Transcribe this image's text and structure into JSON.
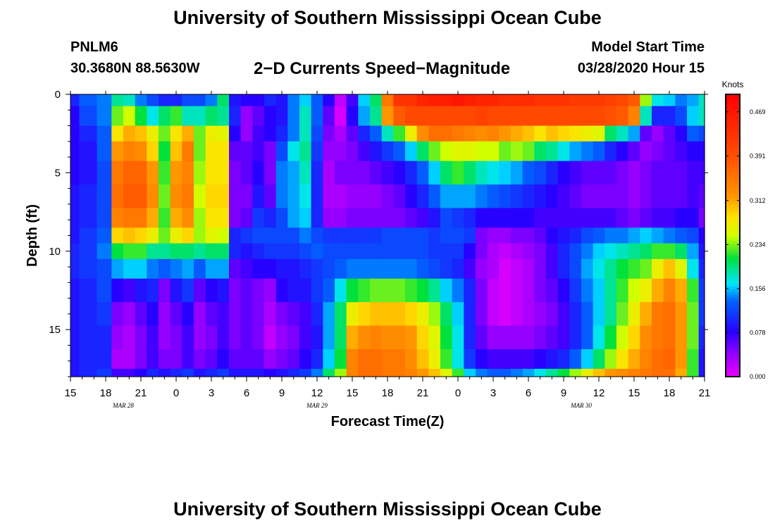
{
  "header": {
    "title": "University of Southern Mississippi Ocean Cube",
    "station": "PNLM6",
    "coordinates": "30.3680N 88.5630W",
    "subtitle": "2−D Currents Speed−Magnitude",
    "start_label": "Model Start Time",
    "start_value": "03/28/2020 Hour 15"
  },
  "footer": {
    "title": "University of Southern Mississippi Ocean Cube"
  },
  "chart_data": {
    "type": "heatmap",
    "title": "2−D Currents Speed−Magnitude",
    "xlabel": "Forecast Time(Z)",
    "ylabel": "Depth (ft)",
    "xlim": [
      0,
      54
    ],
    "ylim": [
      0,
      18
    ],
    "y_inverted": true,
    "x_tick_labels": [
      "15",
      "18",
      "21",
      "0",
      "3",
      "6",
      "9",
      "12",
      "15",
      "18",
      "21",
      "0",
      "3",
      "6",
      "9",
      "12",
      "15",
      "18",
      "21"
    ],
    "x_ticks": [
      0,
      3,
      6,
      9,
      12,
      15,
      18,
      21,
      24,
      27,
      30,
      33,
      36,
      39,
      42,
      45,
      48,
      51,
      54
    ],
    "date_labels": [
      {
        "label": "MAR  28",
        "x": 4.5
      },
      {
        "label": "MAR  29",
        "x": 21
      },
      {
        "label": "MAR  30",
        "x": 43.5
      }
    ],
    "y_ticks": [
      0,
      5,
      10,
      15
    ],
    "colorbar": {
      "label": "Knots",
      "range": [
        0,
        0.5
      ],
      "tick_values": [
        0.0,
        0.078,
        0.156,
        0.234,
        0.312,
        0.391,
        0.469
      ],
      "tick_labels": [
        "0.000",
        "0.078",
        "0.156",
        "0.234",
        "0.312",
        "0.391",
        "0.469"
      ]
    },
    "speed_field_knots": {
      "hours": [
        0,
        1.5,
        3,
        4,
        5,
        6,
        7,
        8,
        9,
        10,
        11,
        12,
        13,
        14,
        15,
        16,
        17,
        18,
        19,
        20,
        21,
        22,
        23,
        24,
        25,
        26,
        27,
        28,
        29,
        30,
        31,
        32,
        33,
        34,
        35,
        36,
        37,
        38,
        39,
        40,
        41,
        42,
        43,
        44,
        45,
        46,
        47,
        48,
        49,
        50,
        51,
        52,
        53,
        54
      ],
      "depths_ft": [
        0,
        1.5,
        2.5,
        3.5,
        5,
        6.5,
        8,
        9,
        10,
        11,
        12.5,
        14,
        15.5,
        17,
        18
      ],
      "rows": [
        [
          0.1,
          0.13,
          0.14,
          0.19,
          0.18,
          0.14,
          0.12,
          0.1,
          0.1,
          0.12,
          0.12,
          0.14,
          0.2,
          0.09,
          0.08,
          0.08,
          0.1,
          0.09,
          0.14,
          0.16,
          0.13,
          0.08,
          0.02,
          0.07,
          0.16,
          0.2,
          0.35,
          0.43,
          0.43,
          0.45,
          0.46,
          0.46,
          0.47,
          0.46,
          0.45,
          0.45,
          0.44,
          0.44,
          0.44,
          0.43,
          0.43,
          0.43,
          0.42,
          0.42,
          0.42,
          0.41,
          0.4,
          0.38,
          0.24,
          0.17,
          0.16,
          0.14,
          0.15,
          0.18
        ],
        [
          0.08,
          0.12,
          0.14,
          0.23,
          0.25,
          0.21,
          0.17,
          0.2,
          0.22,
          0.18,
          0.18,
          0.2,
          0.19,
          0.1,
          0.04,
          0.06,
          0.08,
          0.09,
          0.14,
          0.18,
          0.13,
          0.06,
          0.01,
          0.08,
          0.15,
          0.19,
          0.32,
          0.38,
          0.4,
          0.4,
          0.4,
          0.4,
          0.4,
          0.4,
          0.41,
          0.4,
          0.4,
          0.4,
          0.4,
          0.4,
          0.4,
          0.4,
          0.4,
          0.4,
          0.4,
          0.39,
          0.38,
          0.34,
          0.18,
          0.1,
          0.1,
          0.12,
          0.16,
          0.18
        ],
        [
          0.08,
          0.1,
          0.13,
          0.28,
          0.31,
          0.3,
          0.27,
          0.23,
          0.28,
          0.31,
          0.23,
          0.27,
          0.26,
          0.08,
          0.04,
          0.07,
          0.08,
          0.1,
          0.14,
          0.18,
          0.12,
          0.05,
          0.03,
          0.06,
          0.1,
          0.13,
          0.18,
          0.22,
          0.27,
          0.33,
          0.36,
          0.36,
          0.35,
          0.34,
          0.33,
          0.34,
          0.32,
          0.31,
          0.3,
          0.28,
          0.3,
          0.29,
          0.28,
          0.27,
          0.26,
          0.2,
          0.18,
          0.15,
          0.06,
          0.04,
          0.06,
          0.08,
          0.13,
          0.12
        ],
        [
          0.08,
          0.09,
          0.13,
          0.32,
          0.34,
          0.33,
          0.29,
          0.21,
          0.3,
          0.35,
          0.23,
          0.28,
          0.28,
          0.06,
          0.06,
          0.07,
          0.05,
          0.12,
          0.17,
          0.19,
          0.11,
          0.04,
          0.04,
          0.05,
          0.07,
          0.09,
          0.11,
          0.13,
          0.16,
          0.2,
          0.23,
          0.25,
          0.26,
          0.26,
          0.25,
          0.25,
          0.23,
          0.24,
          0.23,
          0.2,
          0.19,
          0.17,
          0.15,
          0.14,
          0.13,
          0.1,
          0.08,
          0.06,
          0.04,
          0.05,
          0.06,
          0.07,
          0.08,
          0.08
        ],
        [
          0.08,
          0.09,
          0.12,
          0.35,
          0.37,
          0.37,
          0.32,
          0.22,
          0.32,
          0.34,
          0.24,
          0.28,
          0.28,
          0.05,
          0.06,
          0.08,
          0.05,
          0.14,
          0.15,
          0.18,
          0.1,
          0.03,
          0.05,
          0.05,
          0.05,
          0.06,
          0.07,
          0.08,
          0.1,
          0.13,
          0.16,
          0.2,
          0.22,
          0.2,
          0.18,
          0.17,
          0.16,
          0.15,
          0.13,
          0.12,
          0.1,
          0.08,
          0.07,
          0.06,
          0.06,
          0.06,
          0.05,
          0.04,
          0.05,
          0.06,
          0.06,
          0.06,
          0.07,
          0.07
        ],
        [
          0.09,
          0.1,
          0.12,
          0.36,
          0.38,
          0.38,
          0.33,
          0.23,
          0.33,
          0.35,
          0.25,
          0.29,
          0.29,
          0.05,
          0.05,
          0.09,
          0.06,
          0.14,
          0.15,
          0.17,
          0.1,
          0.03,
          0.03,
          0.04,
          0.04,
          0.04,
          0.05,
          0.06,
          0.08,
          0.1,
          0.13,
          0.15,
          0.15,
          0.15,
          0.14,
          0.13,
          0.12,
          0.11,
          0.1,
          0.09,
          0.08,
          0.07,
          0.06,
          0.05,
          0.05,
          0.05,
          0.05,
          0.04,
          0.05,
          0.06,
          0.06,
          0.06,
          0.07,
          0.06
        ],
        [
          0.09,
          0.1,
          0.12,
          0.34,
          0.35,
          0.35,
          0.31,
          0.22,
          0.31,
          0.33,
          0.24,
          0.28,
          0.28,
          0.05,
          0.06,
          0.11,
          0.1,
          0.12,
          0.15,
          0.16,
          0.1,
          0.04,
          0.04,
          0.05,
          0.05,
          0.05,
          0.05,
          0.05,
          0.06,
          0.07,
          0.09,
          0.12,
          0.11,
          0.1,
          0.08,
          0.08,
          0.08,
          0.08,
          0.08,
          0.07,
          0.07,
          0.07,
          0.07,
          0.07,
          0.07,
          0.07,
          0.06,
          0.05,
          0.06,
          0.07,
          0.07,
          0.08,
          0.08,
          0.05
        ],
        [
          0.09,
          0.11,
          0.13,
          0.29,
          0.3,
          0.29,
          0.27,
          0.23,
          0.27,
          0.29,
          0.24,
          0.26,
          0.25,
          0.1,
          0.11,
          0.12,
          0.12,
          0.12,
          0.12,
          0.14,
          0.12,
          0.11,
          0.11,
          0.11,
          0.11,
          0.11,
          0.12,
          0.12,
          0.12,
          0.12,
          0.11,
          0.12,
          0.12,
          0.11,
          0.05,
          0.04,
          0.04,
          0.05,
          0.05,
          0.06,
          0.08,
          0.09,
          0.1,
          0.12,
          0.13,
          0.14,
          0.14,
          0.15,
          0.16,
          0.15,
          0.14,
          0.13,
          0.12,
          0.08
        ],
        [
          0.1,
          0.11,
          0.14,
          0.21,
          0.22,
          0.22,
          0.19,
          0.19,
          0.2,
          0.2,
          0.19,
          0.2,
          0.2,
          0.1,
          0.09,
          0.1,
          0.11,
          0.11,
          0.11,
          0.12,
          0.13,
          0.12,
          0.12,
          0.12,
          0.12,
          0.12,
          0.12,
          0.12,
          0.12,
          0.12,
          0.11,
          0.11,
          0.11,
          0.08,
          0.05,
          0.03,
          0.02,
          0.03,
          0.04,
          0.05,
          0.07,
          0.1,
          0.12,
          0.14,
          0.16,
          0.17,
          0.18,
          0.19,
          0.2,
          0.22,
          0.22,
          0.2,
          0.15,
          0.09
        ],
        [
          0.1,
          0.11,
          0.12,
          0.15,
          0.16,
          0.16,
          0.14,
          0.13,
          0.14,
          0.15,
          0.13,
          0.15,
          0.15,
          0.06,
          0.07,
          0.08,
          0.08,
          0.09,
          0.09,
          0.1,
          0.11,
          0.12,
          0.13,
          0.14,
          0.14,
          0.14,
          0.14,
          0.14,
          0.14,
          0.13,
          0.12,
          0.11,
          0.1,
          0.07,
          0.04,
          0.03,
          0.01,
          0.02,
          0.03,
          0.05,
          0.07,
          0.1,
          0.12,
          0.15,
          0.17,
          0.19,
          0.21,
          0.22,
          0.23,
          0.27,
          0.3,
          0.26,
          0.17,
          0.1
        ],
        [
          0.09,
          0.1,
          0.12,
          0.08,
          0.07,
          0.09,
          0.1,
          0.05,
          0.09,
          0.11,
          0.06,
          0.08,
          0.09,
          0.05,
          0.06,
          0.05,
          0.04,
          0.08,
          0.09,
          0.09,
          0.11,
          0.13,
          0.17,
          0.21,
          0.22,
          0.23,
          0.23,
          0.23,
          0.22,
          0.21,
          0.19,
          0.16,
          0.14,
          0.1,
          0.05,
          0.02,
          0.01,
          0.02,
          0.03,
          0.05,
          0.06,
          0.08,
          0.11,
          0.14,
          0.16,
          0.19,
          0.22,
          0.25,
          0.27,
          0.31,
          0.34,
          0.31,
          0.22,
          0.11
        ],
        [
          0.09,
          0.1,
          0.11,
          0.05,
          0.04,
          0.06,
          0.08,
          0.04,
          0.06,
          0.08,
          0.04,
          0.06,
          0.07,
          0.05,
          0.06,
          0.05,
          0.03,
          0.05,
          0.06,
          0.07,
          0.1,
          0.15,
          0.2,
          0.27,
          0.29,
          0.3,
          0.3,
          0.3,
          0.29,
          0.27,
          0.24,
          0.2,
          0.16,
          0.1,
          0.05,
          0.02,
          0.01,
          0.02,
          0.03,
          0.04,
          0.05,
          0.07,
          0.1,
          0.13,
          0.16,
          0.19,
          0.23,
          0.27,
          0.31,
          0.35,
          0.36,
          0.32,
          0.23,
          0.11
        ],
        [
          0.09,
          0.1,
          0.1,
          0.04,
          0.03,
          0.05,
          0.07,
          0.04,
          0.05,
          0.07,
          0.04,
          0.05,
          0.07,
          0.05,
          0.06,
          0.05,
          0.02,
          0.04,
          0.05,
          0.07,
          0.09,
          0.15,
          0.2,
          0.31,
          0.33,
          0.34,
          0.33,
          0.33,
          0.32,
          0.29,
          0.26,
          0.21,
          0.17,
          0.1,
          0.06,
          0.04,
          0.04,
          0.04,
          0.04,
          0.05,
          0.06,
          0.07,
          0.1,
          0.13,
          0.17,
          0.21,
          0.25,
          0.29,
          0.33,
          0.35,
          0.36,
          0.32,
          0.23,
          0.1
        ],
        [
          0.09,
          0.1,
          0.1,
          0.03,
          0.03,
          0.05,
          0.07,
          0.05,
          0.05,
          0.07,
          0.05,
          0.06,
          0.08,
          0.06,
          0.06,
          0.06,
          0.04,
          0.05,
          0.06,
          0.08,
          0.1,
          0.16,
          0.21,
          0.34,
          0.36,
          0.36,
          0.35,
          0.35,
          0.33,
          0.3,
          0.27,
          0.22,
          0.17,
          0.11,
          0.08,
          0.07,
          0.07,
          0.07,
          0.07,
          0.08,
          0.09,
          0.1,
          0.13,
          0.16,
          0.2,
          0.24,
          0.28,
          0.31,
          0.34,
          0.36,
          0.37,
          0.32,
          0.22,
          0.09
        ],
        [
          0.09,
          0.1,
          0.11,
          0.07,
          0.07,
          0.08,
          0.1,
          0.09,
          0.1,
          0.11,
          0.09,
          0.1,
          0.11,
          0.09,
          0.09,
          0.09,
          0.08,
          0.09,
          0.1,
          0.11,
          0.14,
          0.2,
          0.24,
          0.34,
          0.36,
          0.36,
          0.35,
          0.35,
          0.34,
          0.32,
          0.3,
          0.26,
          0.22,
          0.16,
          0.14,
          0.13,
          0.13,
          0.14,
          0.15,
          0.17,
          0.19,
          0.21,
          0.24,
          0.27,
          0.3,
          0.32,
          0.33,
          0.34,
          0.35,
          0.36,
          0.36,
          0.31,
          0.22,
          0.09
        ]
      ]
    }
  }
}
